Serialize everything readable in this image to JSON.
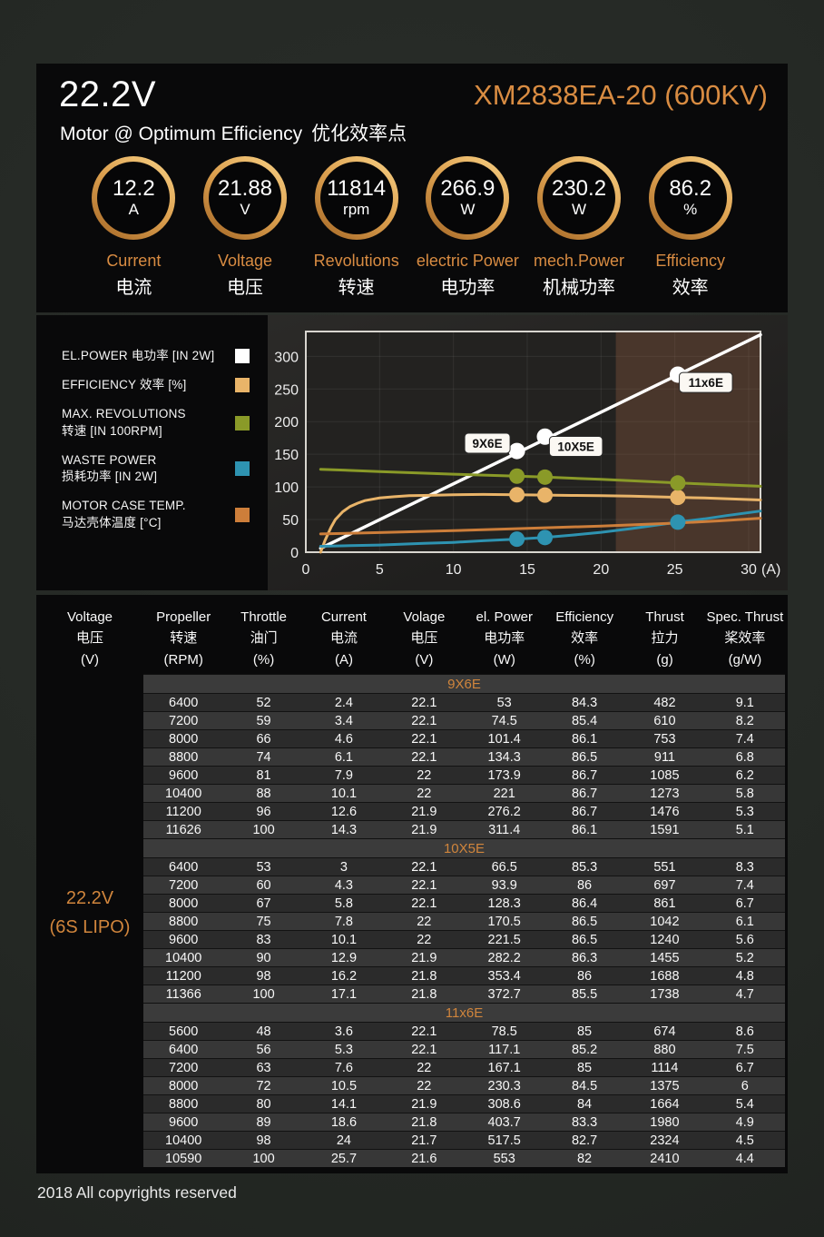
{
  "header": {
    "voltage": "22.2V",
    "subtitle_en": "Motor @ Optimum Efficiency",
    "subtitle_cn": "优化效率点",
    "model": "XM2838EA-20 (600KV)",
    "accent_color": "#d98c42"
  },
  "badges": [
    {
      "value": "12.2",
      "unit": "A",
      "label_en": "Current",
      "label_cn": "电流"
    },
    {
      "value": "21.88",
      "unit": "V",
      "label_en": "Voltage",
      "label_cn": "电压"
    },
    {
      "value": "11814",
      "unit": "rpm",
      "label_en": "Revolutions",
      "label_cn": "转速"
    },
    {
      "value": "266.9",
      "unit": "W",
      "label_en": "electric Power",
      "label_cn": "电功率"
    },
    {
      "value": "230.2",
      "unit": "W",
      "label_en": "mech.Power",
      "label_cn": "机械功率"
    },
    {
      "value": "86.2",
      "unit": "%",
      "label_en": "Efficiency",
      "label_cn": "效率"
    }
  ],
  "legend": [
    {
      "lines": [
        "EL.POWER 电功率 [IN 2W]"
      ],
      "color": "#ffffff"
    },
    {
      "lines": [
        "EFFICIENCY 效率 [%]"
      ],
      "color": "#e9b469"
    },
    {
      "lines": [
        "MAX. REVOLUTIONS",
        "转速 [IN 100RPM]"
      ],
      "color": "#8a9a28"
    },
    {
      "lines": [
        "WASTE POWER",
        "损耗功率 [IN 2W]"
      ],
      "color": "#2e93b1"
    },
    {
      "lines": [
        "MOTOR CASE TEMP.",
        "马达壳体温度 [°C]"
      ],
      "color": "#cd7e3a"
    }
  ],
  "chart_data": {
    "type": "line",
    "xlabel": "(A)",
    "x_ticks": [
      0,
      5,
      10,
      15,
      20,
      25,
      30
    ],
    "y_ticks": [
      0,
      50,
      100,
      150,
      200,
      250,
      300
    ],
    "xlim": [
      0,
      30.8
    ],
    "ylim": [
      0,
      338
    ],
    "grid": true,
    "legend_position": "left",
    "highlight_region": {
      "x0": 21,
      "x1": 30.8,
      "color": "rgba(152,96,66,0.33)"
    },
    "series": [
      {
        "name": "EL.POWER 电功率 [IN 2W]",
        "color": "#ffffff",
        "points": [
          [
            1,
            6
          ],
          [
            30.8,
            333
          ]
        ],
        "markers": [
          [
            14.3,
            155
          ],
          [
            16.2,
            177
          ],
          [
            25.2,
            272
          ]
        ]
      },
      {
        "name": "EFFICIENCY 效率 [%]",
        "color": "#e9b469",
        "points": [
          [
            1,
            0
          ],
          [
            1.3,
            18
          ],
          [
            1.7,
            38
          ],
          [
            2,
            50
          ],
          [
            2.5,
            62
          ],
          [
            3,
            70
          ],
          [
            3.5,
            75
          ],
          [
            4,
            79
          ],
          [
            5,
            83
          ],
          [
            6,
            85
          ],
          [
            7,
            86.5
          ],
          [
            8,
            87
          ],
          [
            10,
            88
          ],
          [
            12,
            88.5
          ],
          [
            14.3,
            88
          ],
          [
            16.2,
            87.5
          ],
          [
            18,
            87
          ],
          [
            20,
            86.5
          ],
          [
            22,
            86
          ],
          [
            25.2,
            84
          ],
          [
            27,
            83
          ],
          [
            30.8,
            80
          ]
        ],
        "markers": [
          [
            14.3,
            88
          ],
          [
            16.2,
            87.5
          ],
          [
            25.2,
            84
          ]
        ]
      },
      {
        "name": "MAX. REVOLUTIONS 转速 [IN 100RPM]",
        "color": "#8a9a28",
        "points": [
          [
            1,
            127
          ],
          [
            5,
            123.5
          ],
          [
            10,
            119.5
          ],
          [
            14.3,
            116.5
          ],
          [
            16.2,
            115
          ],
          [
            20,
            111.5
          ],
          [
            25.2,
            106
          ],
          [
            28,
            103.5
          ],
          [
            30.8,
            101
          ]
        ],
        "markers": [
          [
            14.3,
            116.5
          ],
          [
            16.2,
            115
          ],
          [
            25.2,
            106
          ]
        ]
      },
      {
        "name": "WASTE POWER 损耗功率 [IN 2W]",
        "color": "#2e93b1",
        "points": [
          [
            1,
            9
          ],
          [
            3,
            10
          ],
          [
            5,
            11
          ],
          [
            8,
            13.5
          ],
          [
            10,
            15
          ],
          [
            12,
            17.5
          ],
          [
            14.3,
            20
          ],
          [
            16.2,
            22.5
          ],
          [
            18,
            26
          ],
          [
            20,
            30.5
          ],
          [
            22,
            36
          ],
          [
            25.2,
            46
          ],
          [
            27,
            51
          ],
          [
            28.5,
            56
          ],
          [
            30.8,
            63
          ]
        ],
        "markers": [
          [
            14.3,
            20
          ],
          [
            16.2,
            22.5
          ],
          [
            25.2,
            46
          ]
        ]
      },
      {
        "name": "MOTOR CASE TEMP. 马达壳体温度 [°C]",
        "color": "#cd7e3a",
        "points": [
          [
            1,
            28
          ],
          [
            5,
            30
          ],
          [
            10,
            33
          ],
          [
            15,
            36.5
          ],
          [
            20,
            40
          ],
          [
            25,
            44.5
          ],
          [
            28,
            48
          ],
          [
            30.8,
            52
          ]
        ],
        "markers": []
      }
    ],
    "annotations": [
      {
        "text": "9X6E",
        "x": 12.3,
        "y": 167
      },
      {
        "text": "10X5E",
        "x": 18.3,
        "y": 162
      },
      {
        "text": "11x6E",
        "x": 27.1,
        "y": 260
      }
    ]
  },
  "table": {
    "columns": [
      {
        "en": "Voltage",
        "cn": "电压",
        "unit": "(V)"
      },
      {
        "en": "Propeller",
        "cn": "转速",
        "unit": "(RPM)"
      },
      {
        "en": "Throttle",
        "cn": "油门",
        "unit": "(%)"
      },
      {
        "en": "Current",
        "cn": "电流",
        "unit": "(A)"
      },
      {
        "en": "Volage",
        "cn": "电压",
        "unit": "(V)"
      },
      {
        "en": "el. Power",
        "cn": "电功率",
        "unit": "(W)"
      },
      {
        "en": "Efficiency",
        "cn": "效率",
        "unit": "(%)"
      },
      {
        "en": "Thrust",
        "cn": "拉力",
        "unit": "(g)"
      },
      {
        "en": "Spec. Thrust",
        "cn": "桨效率",
        "unit": "(g/W)"
      }
    ],
    "voltage_line1": "22.2V",
    "voltage_line2": "(6S LIPO)",
    "sections": [
      {
        "name": "9X6E",
        "rows": [
          [
            "6400",
            "52",
            "2.4",
            "22.1",
            "53",
            "84.3",
            "482",
            "9.1"
          ],
          [
            "7200",
            "59",
            "3.4",
            "22.1",
            "74.5",
            "85.4",
            "610",
            "8.2"
          ],
          [
            "8000",
            "66",
            "4.6",
            "22.1",
            "101.4",
            "86.1",
            "753",
            "7.4"
          ],
          [
            "8800",
            "74",
            "6.1",
            "22.1",
            "134.3",
            "86.5",
            "911",
            "6.8"
          ],
          [
            "9600",
            "81",
            "7.9",
            "22",
            "173.9",
            "86.7",
            "1085",
            "6.2"
          ],
          [
            "10400",
            "88",
            "10.1",
            "22",
            "221",
            "86.7",
            "1273",
            "5.8"
          ],
          [
            "11200",
            "96",
            "12.6",
            "21.9",
            "276.2",
            "86.7",
            "1476",
            "5.3"
          ],
          [
            "11626",
            "100",
            "14.3",
            "21.9",
            "311.4",
            "86.1",
            "1591",
            "5.1"
          ]
        ]
      },
      {
        "name": "10X5E",
        "rows": [
          [
            "6400",
            "53",
            "3",
            "22.1",
            "66.5",
            "85.3",
            "551",
            "8.3"
          ],
          [
            "7200",
            "60",
            "4.3",
            "22.1",
            "93.9",
            "86",
            "697",
            "7.4"
          ],
          [
            "8000",
            "67",
            "5.8",
            "22.1",
            "128.3",
            "86.4",
            "861",
            "6.7"
          ],
          [
            "8800",
            "75",
            "7.8",
            "22",
            "170.5",
            "86.5",
            "1042",
            "6.1"
          ],
          [
            "9600",
            "83",
            "10.1",
            "22",
            "221.5",
            "86.5",
            "1240",
            "5.6"
          ],
          [
            "10400",
            "90",
            "12.9",
            "21.9",
            "282.2",
            "86.3",
            "1455",
            "5.2"
          ],
          [
            "11200",
            "98",
            "16.2",
            "21.8",
            "353.4",
            "86",
            "1688",
            "4.8"
          ],
          [
            "11366",
            "100",
            "17.1",
            "21.8",
            "372.7",
            "85.5",
            "1738",
            "4.7"
          ]
        ]
      },
      {
        "name": "11x6E",
        "rows": [
          [
            "5600",
            "48",
            "3.6",
            "22.1",
            "78.5",
            "85",
            "674",
            "8.6"
          ],
          [
            "6400",
            "56",
            "5.3",
            "22.1",
            "117.1",
            "85.2",
            "880",
            "7.5"
          ],
          [
            "7200",
            "63",
            "7.6",
            "22",
            "167.1",
            "85",
            "1114",
            "6.7"
          ],
          [
            "8000",
            "72",
            "10.5",
            "22",
            "230.3",
            "84.5",
            "1375",
            "6"
          ],
          [
            "8800",
            "80",
            "14.1",
            "21.9",
            "308.6",
            "84",
            "1664",
            "5.4"
          ],
          [
            "9600",
            "89",
            "18.6",
            "21.8",
            "403.7",
            "83.3",
            "1980",
            "4.9"
          ],
          [
            "10400",
            "98",
            "24",
            "21.7",
            "517.5",
            "82.7",
            "2324",
            "4.5"
          ],
          [
            "10590",
            "100",
            "25.7",
            "21.6",
            "553",
            "82",
            "2410",
            "4.4"
          ]
        ]
      }
    ]
  },
  "footer": {
    "text": "2018 All copyrights reserved"
  }
}
